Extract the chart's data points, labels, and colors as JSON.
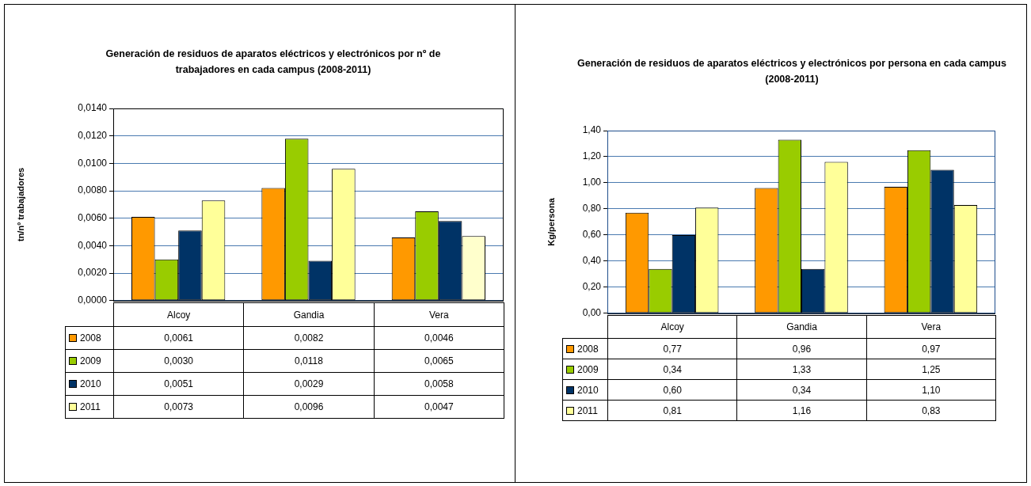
{
  "chart_data": [
    {
      "type": "bar",
      "title": "Generación de residuos de aparatos eléctricos y electrónicos por nº de trabajadores en cada campus (2008-2011)",
      "ylabel": "tn/nº trabajadores",
      "categories": [
        "Alcoy",
        "Gandia",
        "Vera"
      ],
      "series": [
        {
          "name": "2008",
          "color": "#ff9900",
          "values": [
            0.0061,
            0.0082,
            0.0046
          ],
          "value_labels": [
            "0,0061",
            "0,0082",
            "0,0046"
          ]
        },
        {
          "name": "2009",
          "color": "#99cc00",
          "values": [
            0.003,
            0.0118,
            0.0065
          ],
          "value_labels": [
            "0,0030",
            "0,0118",
            "0,0065"
          ]
        },
        {
          "name": "2010",
          "color": "#003366",
          "values": [
            0.0051,
            0.0029,
            0.0058
          ],
          "value_labels": [
            "0,0051",
            "0,0029",
            "0,0058"
          ]
        },
        {
          "name": "2011",
          "color": "#ffff99",
          "colors": [
            "#ffff99",
            "#ffff99",
            "#ffffcc"
          ],
          "values": [
            0.0073,
            0.0096,
            0.0047
          ],
          "value_labels": [
            "0,0073",
            "0,0096",
            "0,0047"
          ]
        }
      ],
      "ylim": [
        0,
        0.014
      ],
      "yticks": [
        {
          "value": 0,
          "label": "0,0000"
        },
        {
          "value": 0.002,
          "label": "0,0020"
        },
        {
          "value": 0.004,
          "label": "0,0040"
        },
        {
          "value": 0.006,
          "label": "0,0060"
        },
        {
          "value": 0.008,
          "label": "0,0080"
        },
        {
          "value": 0.01,
          "label": "0,0100"
        },
        {
          "value": 0.012,
          "label": "0,0120"
        },
        {
          "value": 0.014,
          "label": "0,0140"
        }
      ],
      "grid": "y",
      "legend": "bottom"
    },
    {
      "type": "bar",
      "title": "Generación de residuos de aparatos eléctricos y electrónicos por persona en cada campus (2008-2011)",
      "ylabel": "Kg/persona",
      "categories": [
        "Alcoy",
        "Gandia",
        "Vera"
      ],
      "series": [
        {
          "name": "2008",
          "color": "#ff9900",
          "values": [
            0.77,
            0.96,
            0.97
          ],
          "value_labels": [
            "0,77",
            "0,96",
            "0,97"
          ]
        },
        {
          "name": "2009",
          "color": "#99cc00",
          "values": [
            0.34,
            1.33,
            1.25
          ],
          "value_labels": [
            "0,34",
            "1,33",
            "1,25"
          ]
        },
        {
          "name": "2010",
          "color": "#003366",
          "values": [
            0.6,
            0.34,
            1.1
          ],
          "value_labels": [
            "0,60",
            "0,34",
            "1,10"
          ]
        },
        {
          "name": "2011",
          "color": "#ffff99",
          "values": [
            0.81,
            1.16,
            0.83
          ],
          "value_labels": [
            "0,81",
            "1,16",
            "0,83"
          ]
        }
      ],
      "ylim": [
        0,
        1.4
      ],
      "yticks": [
        {
          "value": 0,
          "label": "0,00"
        },
        {
          "value": 0.2,
          "label": "0,20"
        },
        {
          "value": 0.4,
          "label": "0,40"
        },
        {
          "value": 0.6,
          "label": "0,60"
        },
        {
          "value": 0.8,
          "label": "0,80"
        },
        {
          "value": 1,
          "label": "1,00"
        },
        {
          "value": 1.2,
          "label": "1,20"
        },
        {
          "value": 1.4,
          "label": "1,40"
        }
      ],
      "grid": "y",
      "legend": "bottom"
    }
  ]
}
